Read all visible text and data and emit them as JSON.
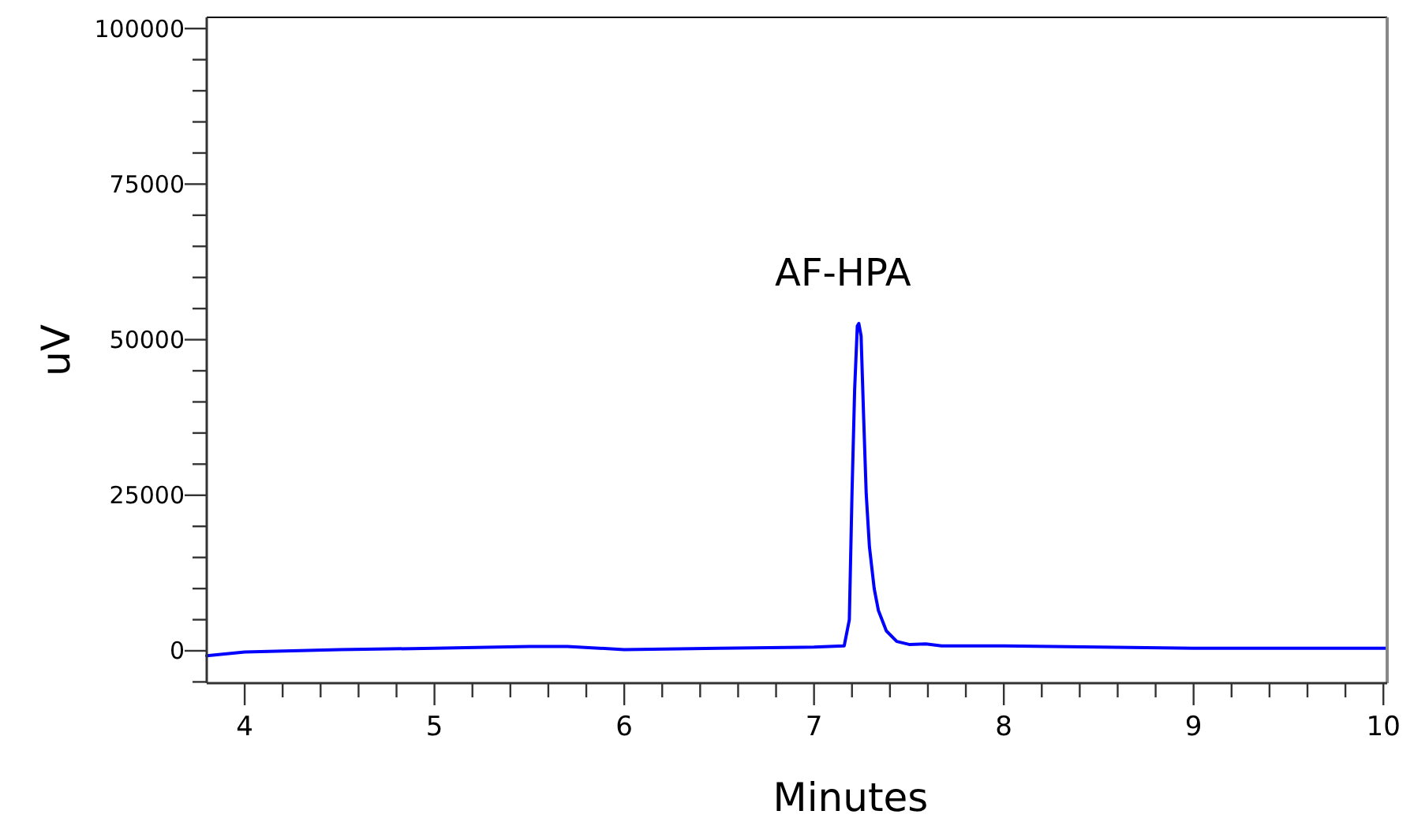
{
  "chart_data": {
    "type": "line",
    "xlabel": "Minutes",
    "ylabel": "uV",
    "x": [
      3.8,
      4.0,
      4.5,
      5.0,
      5.5,
      5.7,
      6.0,
      6.5,
      7.0,
      7.159,
      7.186,
      7.2,
      7.214,
      7.228,
      7.236,
      7.248,
      7.261,
      7.275,
      7.292,
      7.317,
      7.339,
      7.381,
      7.436,
      7.505,
      7.589,
      7.672,
      8.0,
      8.5,
      9.0,
      9.5,
      10.02
    ],
    "series": [
      {
        "color": "#0000ff",
        "values": [
          -800,
          -200,
          200,
          400,
          700,
          700,
          200,
          400,
          600,
          800,
          5000,
          25200,
          42000,
          52200,
          52600,
          50600,
          37900,
          25200,
          16700,
          10000,
          6500,
          3200,
          1500,
          1000,
          1100,
          800,
          800,
          600,
          400,
          400,
          400
        ]
      }
    ],
    "xlim": [
      3.8,
      10.02
    ],
    "xticks": [
      4,
      {
        "value": 4.2,
        "label": null
      },
      {
        "value": 4.4,
        "label": null
      },
      {
        "value": 4.6,
        "label": null
      },
      {
        "value": 4.8,
        "label": null
      },
      5,
      {
        "value": 5.2,
        "label": null
      },
      {
        "value": 5.4,
        "label": null
      },
      {
        "value": 5.6,
        "label": null
      },
      {
        "value": 5.8,
        "label": null
      },
      6,
      {
        "value": 6.2,
        "label": null
      },
      {
        "value": 6.4,
        "label": null
      },
      {
        "value": 6.6,
        "label": null
      },
      {
        "value": 6.8,
        "label": null
      },
      7,
      {
        "value": 7.2,
        "label": null
      },
      {
        "value": 7.4,
        "label": null
      },
      {
        "value": 7.6,
        "label": null
      },
      {
        "value": 7.8,
        "label": null
      },
      8,
      {
        "value": 8.2,
        "label": null
      },
      {
        "value": 8.4,
        "label": null
      },
      {
        "value": 8.6,
        "label": null
      },
      {
        "value": 8.8,
        "label": null
      },
      9,
      {
        "value": 9.2,
        "label": null
      },
      {
        "value": 9.4,
        "label": null
      },
      {
        "value": 9.6,
        "label": null
      },
      {
        "value": 9.8,
        "label": null
      },
      10
    ],
    "ylim": [
      -5200,
      101800
    ],
    "yticks": [
      {
        "value": -5000,
        "label": null
      },
      0,
      {
        "value": 5000,
        "label": null
      },
      {
        "value": 10000,
        "label": null
      },
      {
        "value": 15000,
        "label": null
      },
      {
        "value": 20000,
        "label": null
      },
      25000,
      {
        "value": 30000,
        "label": null
      },
      {
        "value": 35000,
        "label": null
      },
      {
        "value": 40000,
        "label": null
      },
      {
        "value": 45000,
        "label": null
      },
      50000,
      {
        "value": 55000,
        "label": null
      },
      {
        "value": 60000,
        "label": null
      },
      {
        "value": 65000,
        "label": null
      },
      {
        "value": 70000,
        "label": null
      },
      75000,
      {
        "value": 80000,
        "label": null
      },
      {
        "value": 85000,
        "label": null
      },
      {
        "value": 90000,
        "label": null
      },
      {
        "value": 95000,
        "label": null
      },
      100000
    ],
    "annotations": [
      {
        "text": "AF-HPA",
        "x": 7.236,
        "y": 52600
      }
    ],
    "grid": false,
    "marker": "none",
    "line_style": "solid"
  }
}
